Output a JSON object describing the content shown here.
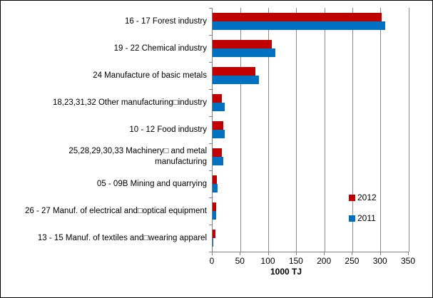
{
  "chart_data": {
    "type": "bar",
    "orientation": "horizontal",
    "title": "",
    "xlabel": "1000 TJ",
    "ylabel": "",
    "xlim": [
      0,
      350
    ],
    "xticks": [
      0,
      50,
      100,
      150,
      200,
      250,
      300,
      350
    ],
    "grid": true,
    "legend_position": "right-middle",
    "categories": [
      "16 - 17 Forest industry",
      "19 - 22 Chemical industry",
      "24 Manufacture of basic metals",
      "18,23,31,32 Other manufacturing□industry",
      "10 - 12 Food industry",
      "25,28,29,30,33 Machinery□ and metal\nmanufacturing",
      "05 - 09B Mining and quarrying",
      "26 - 27 Manuf. of electrical and□optical equipment",
      "13 - 15 Manuf. of textiles and□wearing apparel"
    ],
    "series": [
      {
        "name": "2012",
        "color": "#C00000",
        "values": [
          301,
          106,
          76,
          17,
          19,
          17,
          8,
          6,
          5
        ]
      },
      {
        "name": "2011",
        "color": "#0070C0",
        "values": [
          308,
          112,
          83,
          22,
          21,
          19,
          9,
          6,
          1
        ]
      }
    ]
  },
  "colors": {
    "background": "#FFFFFF",
    "border": "#000000",
    "grid": "#8C8C8C",
    "axis": "#7F7F7F",
    "text": "#000000"
  }
}
